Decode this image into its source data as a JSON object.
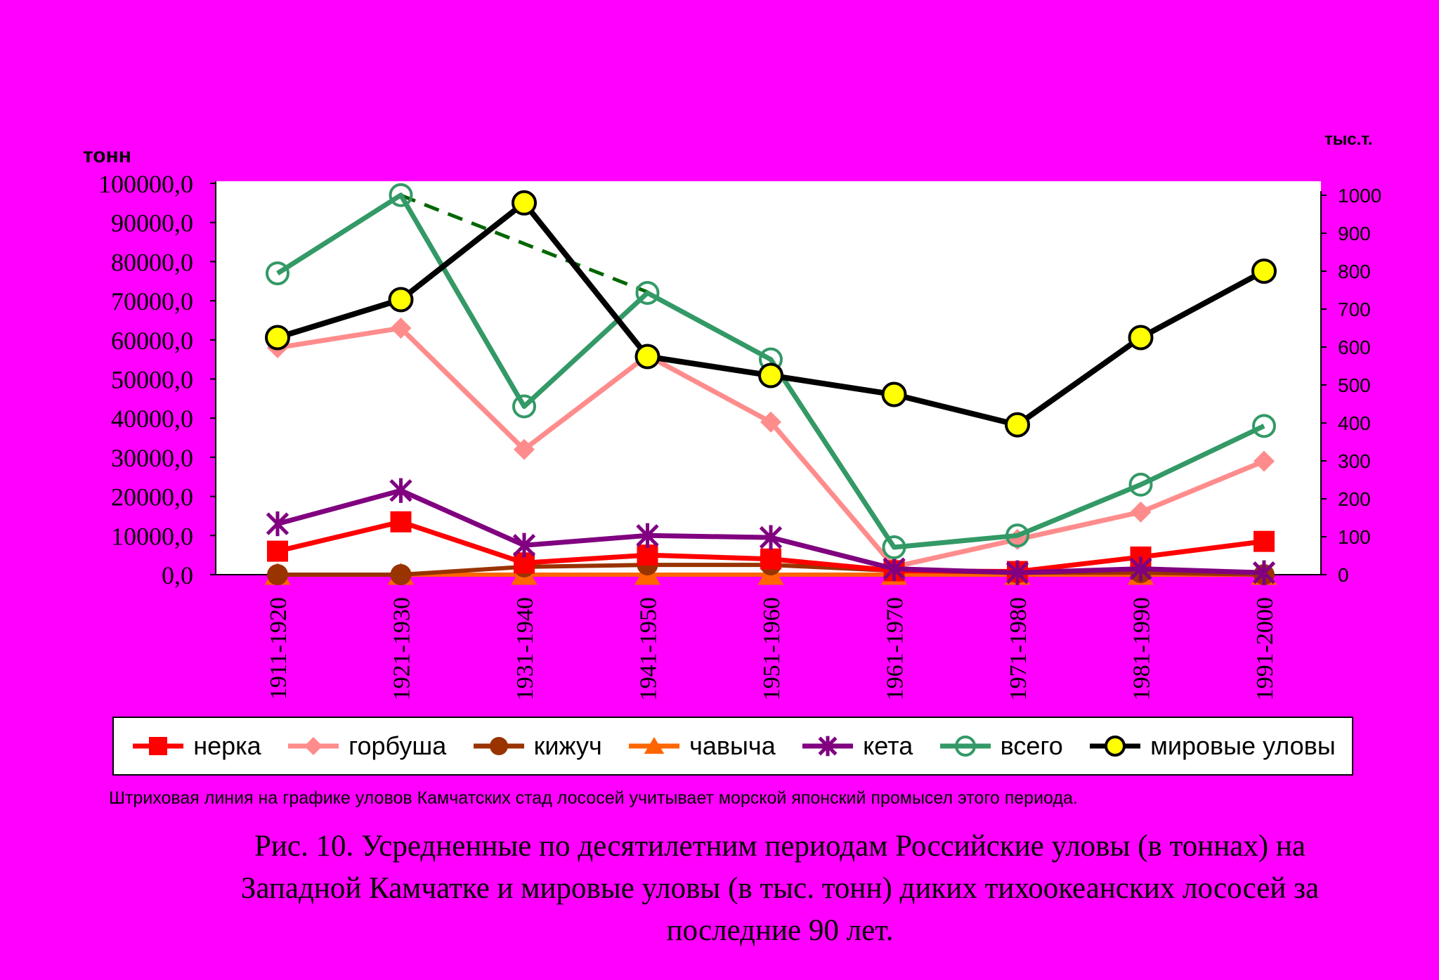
{
  "chart_data": {
    "type": "line",
    "y_left_label": "тонн",
    "y_right_label": "тыс.т.",
    "ylim_left": [
      0,
      100000
    ],
    "ylim_right": [
      0,
      1000
    ],
    "y_left_ticks": [
      "0,0",
      "10000,0",
      "20000,0",
      "30000,0",
      "40000,0",
      "50000,0",
      "60000,0",
      "70000,0",
      "80000,0",
      "90000,0",
      "100000,0"
    ],
    "y_right_ticks": [
      "0",
      "100",
      "200",
      "300",
      "400",
      "500",
      "600",
      "700",
      "800",
      "900",
      "1000"
    ],
    "categories": [
      "1911-1920",
      "1921-1930",
      "1931-1940",
      "1941-1950",
      "1951-1960",
      "1961-1970",
      "1971-1980",
      "1981-1990",
      "1991-2000"
    ],
    "series": [
      {
        "name": "нерка",
        "axis": "left",
        "color": "#FF0000",
        "marker": "square",
        "values": [
          6000,
          13500,
          3000,
          5000,
          4000,
          1000,
          800,
          4500,
          8500
        ]
      },
      {
        "name": "горбуша",
        "axis": "left",
        "color": "#FF8C8C",
        "marker": "diamond",
        "values": [
          58000,
          63000,
          32000,
          56000,
          39000,
          2000,
          9000,
          16000,
          29000
        ]
      },
      {
        "name": "кижуч",
        "axis": "left",
        "color": "#993300",
        "marker": "circle",
        "values": [
          0,
          0,
          2000,
          2500,
          2500,
          1000,
          500,
          500,
          0
        ]
      },
      {
        "name": "чавыча",
        "axis": "left",
        "color": "#FF6600",
        "marker": "triangle",
        "values": [
          0,
          0,
          0,
          0,
          0,
          0,
          0,
          0,
          0
        ]
      },
      {
        "name": "кета",
        "axis": "left",
        "color": "#800080",
        "marker": "star",
        "values": [
          13000,
          21500,
          7500,
          10000,
          9500,
          1500,
          500,
          1500,
          500
        ]
      },
      {
        "name": "всего",
        "axis": "left",
        "color": "#339966",
        "marker": "open-circle",
        "values": [
          77000,
          97000,
          43000,
          72000,
          55000,
          7000,
          10000,
          23000,
          38000
        ]
      },
      {
        "name": "мировые уловы",
        "axis": "right",
        "color": "#000000",
        "marker": "yellow-circle",
        "values": [
          625,
          725,
          980,
          575,
          525,
          475,
          395,
          625,
          800
        ]
      }
    ],
    "dashed_line": {
      "color": "#006600",
      "points": [
        [
          1,
          1000
        ],
        [
          3,
          745
        ]
      ]
    },
    "legend_position": "bottom",
    "grid": false
  },
  "note": "Штриховая линия на графике уловов Камчатских стад лососей учитывает морской японский промысел этого периода.",
  "caption": "Рис. 10.  Усредненные по десятилетним периодам Российские уловы (в тоннах) на Западной Камчатке и мировые уловы (в тыс. тонн) диких тихоокеанских лососей за последние 90 лет."
}
